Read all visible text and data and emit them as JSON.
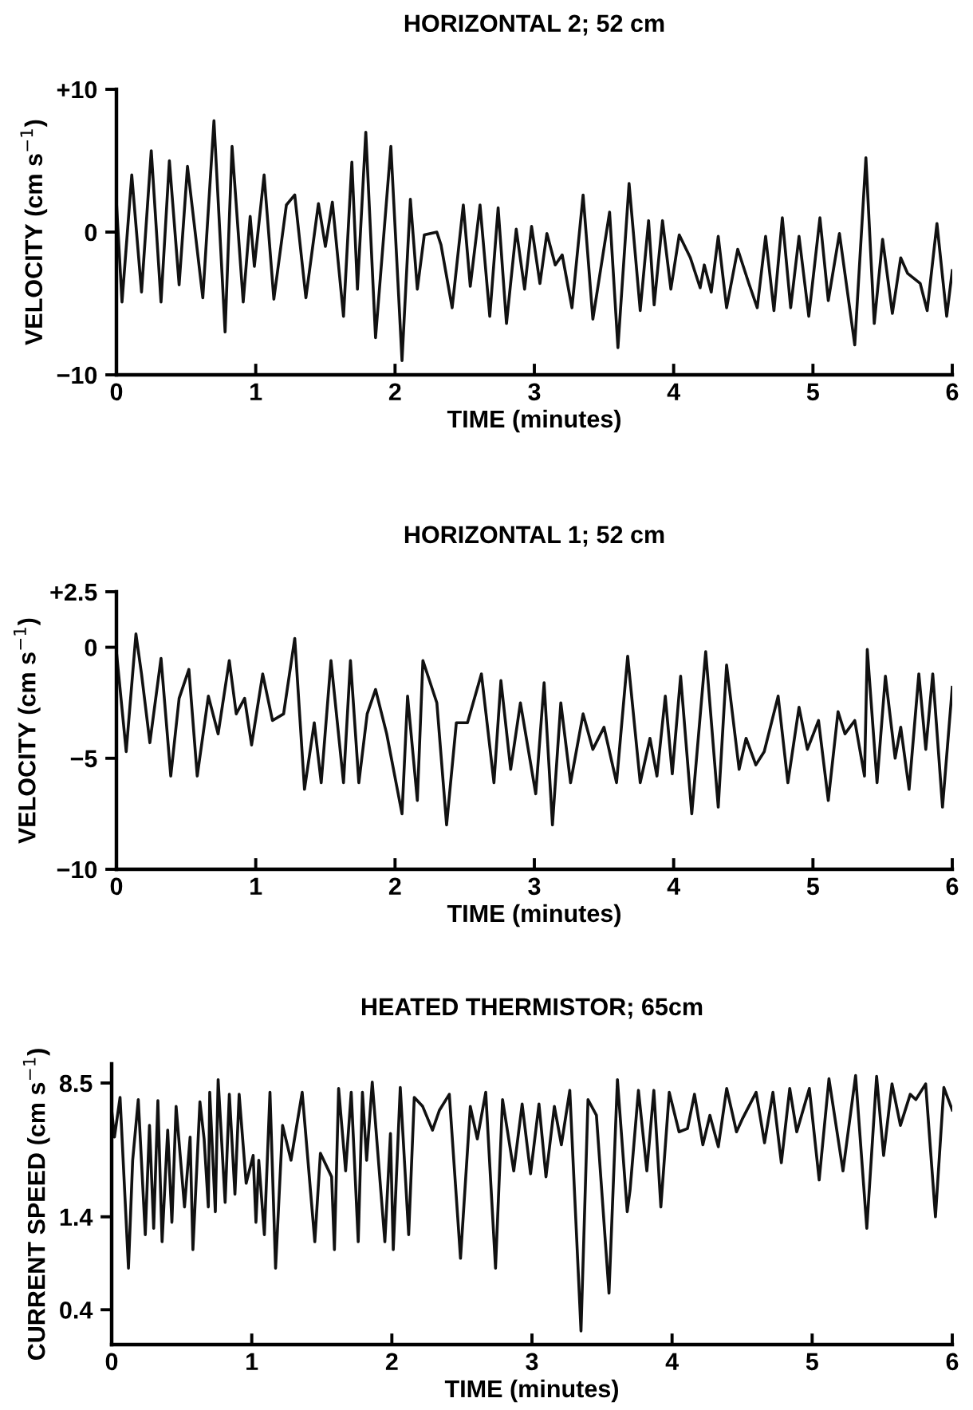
{
  "chart_data": [
    {
      "type": "line",
      "title": "HORIZONTAL 2; 52 cm",
      "xlabel": "TIME (minutes)",
      "ylabel": "VELOCITY (cm s$^{−1}$)",
      "xlim": [
        0,
        6
      ],
      "xticks": [
        0,
        1,
        2,
        3,
        4,
        5,
        6
      ],
      "ylim": [
        -10,
        10
      ],
      "yticks": [
        {
          "value": 10,
          "label": "+10"
        },
        0,
        {
          "value": -10,
          "label": "−10"
        }
      ],
      "marker": "none",
      "line_style": "solid",
      "series": [
        {
          "color": "#111111",
          "x": [
            0.0,
            0.04,
            0.11,
            0.18,
            0.25,
            0.32,
            0.38,
            0.45,
            0.51,
            0.62,
            0.7,
            0.78,
            0.83,
            0.91,
            0.96,
            0.99,
            1.06,
            1.13,
            1.22,
            1.28,
            1.36,
            1.45,
            1.5,
            1.55,
            1.63,
            1.69,
            1.73,
            1.79,
            1.86,
            1.97,
            2.05,
            2.11,
            2.16,
            2.21,
            2.3,
            2.33,
            2.41,
            2.49,
            2.54,
            2.61,
            2.68,
            2.74,
            2.8,
            2.87,
            2.93,
            2.98,
            3.04,
            3.09,
            3.15,
            3.2,
            3.27,
            3.35,
            3.42,
            3.54,
            3.6,
            3.68,
            3.76,
            3.82,
            3.86,
            3.92,
            3.98,
            4.04,
            4.12,
            4.19,
            4.22,
            4.27,
            4.32,
            4.38,
            4.46,
            4.54,
            4.6,
            4.66,
            4.72,
            4.78,
            4.84,
            4.9,
            4.97,
            5.05,
            5.11,
            5.19,
            5.3,
            5.38,
            5.44,
            5.5,
            5.57,
            5.63,
            5.68,
            5.77,
            5.82,
            5.89,
            5.96,
            6.0
          ],
          "values": [
            2.1,
            -4.9,
            4.0,
            -4.2,
            5.7,
            -4.9,
            5.0,
            -3.7,
            4.6,
            -4.6,
            7.8,
            -7.0,
            6.0,
            -4.9,
            1.1,
            -2.4,
            4.0,
            -4.7,
            1.9,
            2.6,
            -4.6,
            2.0,
            -1.0,
            2.1,
            -5.9,
            4.9,
            -4.0,
            7.0,
            -7.4,
            6.0,
            -9.0,
            2.3,
            -4.0,
            -0.2,
            0.0,
            -0.9,
            -5.3,
            1.9,
            -3.8,
            1.9,
            -5.9,
            1.7,
            -6.4,
            0.2,
            -4.0,
            0.4,
            -3.6,
            -0.1,
            -2.3,
            -1.6,
            -5.3,
            2.6,
            -6.1,
            1.4,
            -8.1,
            3.4,
            -5.5,
            0.8,
            -5.1,
            0.8,
            -4.0,
            -0.2,
            -1.8,
            -3.9,
            -2.3,
            -4.2,
            -0.3,
            -5.3,
            -1.2,
            -3.6,
            -5.3,
            -0.3,
            -5.5,
            1.0,
            -5.3,
            -0.3,
            -5.9,
            1.0,
            -4.8,
            -0.1,
            -7.9,
            5.2,
            -6.4,
            -0.5,
            -5.7,
            -1.8,
            -2.9,
            -3.6,
            -5.5,
            0.6,
            -5.9,
            -2.7
          ]
        }
      ]
    },
    {
      "type": "line",
      "title": "HORIZONTAL 1; 52 cm",
      "xlabel": "TIME (minutes)",
      "ylabel": "VELOCITY (cm s$^{−1}$)",
      "xlim": [
        0,
        6
      ],
      "xticks": [
        0,
        1,
        2,
        3,
        4,
        5,
        6
      ],
      "ylim": [
        -10,
        2.5
      ],
      "yticks": [
        {
          "value": 2.5,
          "label": "+2.5"
        },
        0,
        {
          "value": -5,
          "label": "−5"
        },
        {
          "value": -10,
          "label": "−10"
        }
      ],
      "marker": "none",
      "line_style": "solid",
      "series": [
        {
          "color": "#111111",
          "x": [
            0.0,
            0.07,
            0.14,
            0.18,
            0.24,
            0.32,
            0.39,
            0.45,
            0.52,
            0.58,
            0.66,
            0.73,
            0.81,
            0.86,
            0.92,
            0.97,
            1.05,
            1.12,
            1.2,
            1.28,
            1.35,
            1.42,
            1.47,
            1.54,
            1.63,
            1.68,
            1.74,
            1.8,
            1.86,
            1.94,
            2.05,
            2.09,
            2.16,
            2.2,
            2.3,
            2.37,
            2.44,
            2.52,
            2.62,
            2.71,
            2.76,
            2.83,
            2.9,
            3.01,
            3.07,
            3.13,
            3.19,
            3.26,
            3.35,
            3.42,
            3.5,
            3.59,
            3.67,
            3.76,
            3.83,
            3.88,
            3.94,
            3.99,
            4.05,
            4.13,
            4.23,
            4.32,
            4.38,
            4.47,
            4.52,
            4.59,
            4.65,
            4.75,
            4.82,
            4.9,
            4.96,
            5.04,
            5.11,
            5.18,
            5.23,
            5.3,
            5.37,
            5.39,
            5.46,
            5.52,
            5.59,
            5.63,
            5.69,
            5.76,
            5.81,
            5.86,
            5.93,
            6.0
          ],
          "values": [
            -0.2,
            -4.7,
            0.6,
            -1.2,
            -4.3,
            -0.5,
            -5.8,
            -2.3,
            -1.0,
            -5.8,
            -2.2,
            -3.9,
            -0.6,
            -3.0,
            -2.3,
            -4.4,
            -1.2,
            -3.3,
            -3.0,
            0.4,
            -6.4,
            -3.4,
            -6.1,
            -0.6,
            -6.1,
            -0.6,
            -6.1,
            -3.0,
            -1.9,
            -3.9,
            -7.5,
            -2.2,
            -6.9,
            -0.6,
            -2.5,
            -8.0,
            -3.4,
            -3.4,
            -1.2,
            -6.1,
            -1.5,
            -5.5,
            -2.5,
            -6.6,
            -1.6,
            -8.0,
            -2.5,
            -6.1,
            -3.0,
            -4.6,
            -3.6,
            -6.1,
            -0.4,
            -6.1,
            -4.1,
            -5.8,
            -2.2,
            -5.7,
            -1.3,
            -7.5,
            -0.2,
            -7.2,
            -0.8,
            -5.5,
            -4.1,
            -5.3,
            -4.7,
            -2.2,
            -6.1,
            -2.7,
            -4.6,
            -3.3,
            -6.9,
            -2.9,
            -3.9,
            -3.3,
            -5.8,
            -0.1,
            -6.1,
            -1.3,
            -5.0,
            -3.6,
            -6.4,
            -1.2,
            -4.6,
            -1.2,
            -7.2,
            -1.8
          ]
        }
      ]
    },
    {
      "type": "line",
      "title": "HEATED THERMISTOR; 65cm",
      "xlabel": "TIME (minutes)",
      "ylabel": "CURRENT SPEED (cm s$^{−1}$)",
      "xlim": [
        0,
        6
      ],
      "xticks": [
        0,
        1,
        2,
        3,
        4,
        5,
        6
      ],
      "log": "y",
      "ylim": [
        0.25,
        11
      ],
      "yticks": [
        0.4,
        1.4,
        8.5
      ],
      "marker": "none",
      "line_style": "solid",
      "series": [
        {
          "color": "#111111",
          "x": [
            0.0,
            0.02,
            0.06,
            0.12,
            0.15,
            0.19,
            0.24,
            0.27,
            0.3,
            0.33,
            0.36,
            0.4,
            0.43,
            0.46,
            0.52,
            0.56,
            0.58,
            0.63,
            0.66,
            0.69,
            0.7,
            0.74,
            0.76,
            0.81,
            0.84,
            0.88,
            0.91,
            0.96,
            1.01,
            1.03,
            1.05,
            1.09,
            1.13,
            1.17,
            1.22,
            1.28,
            1.36,
            1.45,
            1.49,
            1.57,
            1.59,
            1.62,
            1.67,
            1.71,
            1.76,
            1.79,
            1.82,
            1.86,
            1.95,
            1.99,
            2.01,
            2.06,
            2.12,
            2.16,
            2.22,
            2.29,
            2.34,
            2.41,
            2.49,
            2.56,
            2.61,
            2.67,
            2.74,
            2.79,
            2.87,
            2.93,
            2.99,
            3.05,
            3.1,
            3.16,
            3.21,
            3.27,
            3.35,
            3.4,
            3.46,
            3.55,
            3.61,
            3.68,
            3.7,
            3.76,
            3.82,
            3.87,
            3.92,
            3.98,
            4.05,
            4.11,
            4.16,
            4.22,
            4.27,
            4.33,
            4.39,
            4.46,
            4.5,
            4.6,
            4.66,
            4.72,
            4.78,
            4.84,
            4.89,
            4.98,
            5.05,
            5.12,
            5.22,
            5.31,
            5.39,
            5.46,
            5.51,
            5.57,
            5.63,
            5.7,
            5.74,
            5.81,
            5.88,
            5.94,
            6.0
          ],
          "values": [
            5.9,
            4.1,
            7.0,
            0.7,
            3.0,
            6.8,
            1.1,
            4.8,
            1.2,
            6.7,
            1.0,
            4.5,
            1.3,
            6.2,
            1.6,
            4.1,
            0.9,
            6.6,
            4.0,
            1.6,
            7.5,
            1.5,
            8.9,
            1.7,
            7.3,
            1.9,
            7.3,
            2.2,
            3.2,
            1.3,
            3.0,
            1.1,
            7.5,
            0.7,
            4.8,
            3.0,
            7.5,
            1.0,
            3.3,
            2.4,
            0.9,
            7.9,
            2.6,
            7.5,
            1.0,
            7.5,
            3.0,
            8.6,
            1.0,
            4.3,
            0.9,
            8.0,
            1.1,
            7.0,
            6.2,
            4.5,
            5.9,
            7.3,
            0.8,
            6.2,
            4.0,
            7.5,
            0.7,
            6.8,
            2.6,
            6.4,
            2.5,
            6.4,
            2.4,
            6.2,
            3.7,
            7.7,
            0.3,
            6.8,
            5.5,
            0.5,
            8.9,
            1.5,
            2.0,
            7.7,
            2.6,
            7.7,
            1.6,
            7.5,
            4.4,
            4.6,
            7.3,
            3.7,
            5.5,
            3.6,
            7.9,
            4.4,
            5.2,
            7.5,
            3.8,
            7.5,
            2.9,
            7.9,
            4.4,
            7.9,
            2.3,
            9.0,
            2.6,
            9.4,
            1.2,
            9.3,
            3.2,
            8.4,
            4.8,
            7.3,
            6.8,
            8.4,
            1.4,
            8.0,
            5.9
          ]
        }
      ]
    }
  ]
}
